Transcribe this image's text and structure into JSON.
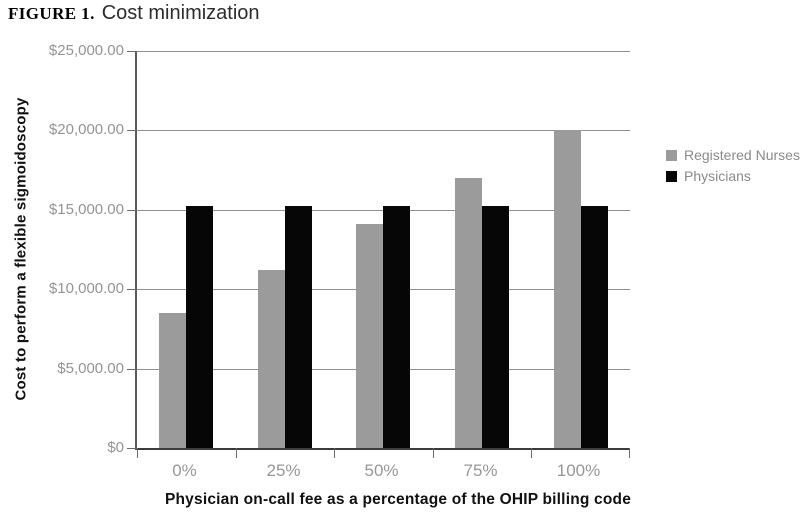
{
  "figure": {
    "label": "FIGURE 1.",
    "title": "Cost minimization"
  },
  "chart_data": {
    "type": "bar",
    "title": "FIGURE 1. Cost minimization",
    "categories": [
      "0%",
      "25%",
      "50%",
      "75%",
      "100%"
    ],
    "series": [
      {
        "name": "Registered Nurses",
        "color": "#9b9b9b",
        "values": [
          8500,
          11200,
          14100,
          17000,
          20000
        ]
      },
      {
        "name": "Physicians",
        "color": "#060606",
        "values": [
          15250,
          15250,
          15250,
          15250,
          15250
        ]
      }
    ],
    "xlabel": "Physician on-call fee as a percentage of the OHIP billing code",
    "ylabel": "Cost to perform a flexible sigmoidoscopy",
    "ylim": [
      0,
      25000
    ],
    "ytick_step": 5000,
    "ytick_labels": [
      "$0",
      "$5,000.00",
      "$10,000.00",
      "$15,000.00",
      "$20,000.00",
      "$25,000.00"
    ],
    "grid": true,
    "legend_position": "right",
    "colors": {
      "gridline": "#8f8f8f",
      "axis": "#5a5a5a",
      "tick_label": "#949494",
      "legend_text": "#8a8a8a"
    }
  }
}
